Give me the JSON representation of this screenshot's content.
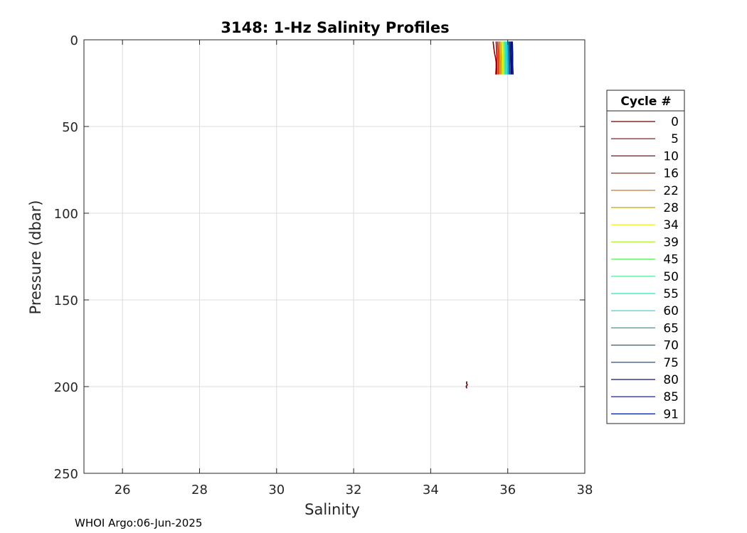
{
  "chart_data": {
    "type": "line",
    "title": "3148: 1-Hz Salinity Profiles",
    "xlabel": "Salinity",
    "ylabel": "Pressure (dbar)",
    "xlim": [
      25,
      38
    ],
    "ylim": [
      0,
      250
    ],
    "y_reversed": true,
    "x_ticks": [
      "26",
      "28",
      "30",
      "32",
      "34",
      "36",
      "38"
    ],
    "y_ticks": [
      "0",
      "50",
      "100",
      "150",
      "200",
      "250"
    ],
    "grid": true,
    "legend": {
      "title": "Cycle #",
      "placement": "right-outside",
      "entries": [
        "0",
        "5",
        "10",
        "16",
        "22",
        "28",
        "34",
        "39",
        "45",
        "50",
        "55",
        "60",
        "65",
        "70",
        "75",
        "80",
        "85",
        "91"
      ],
      "colors": [
        "#6b0000",
        "#8b0000",
        "#b00000",
        "#c82000",
        "#d86400",
        "#c8a800",
        "#f0f000",
        "#b4f040",
        "#64f064",
        "#40e890",
        "#30e0c0",
        "#20d0e8",
        "#10a8c8",
        "#0a6e8c",
        "#0a3e7c",
        "#101070",
        "#0c0c8c",
        "#0018a0"
      ]
    },
    "series": [
      {
        "cycle": "0",
        "points": [
          [
            34.94,
            197
          ],
          [
            34.93,
            198
          ],
          [
            34.95,
            199
          ],
          [
            34.92,
            200
          ],
          [
            34.94,
            201
          ]
        ]
      },
      {
        "cycle": "5",
        "points": [
          [
            35.62,
            1
          ],
          [
            35.64,
            5
          ],
          [
            35.66,
            8
          ],
          [
            35.68,
            10
          ],
          [
            35.7,
            13
          ],
          [
            35.7,
            16
          ],
          [
            35.69,
            20
          ]
        ]
      },
      {
        "cycle": "10",
        "points": [
          [
            35.7,
            1
          ],
          [
            35.71,
            6
          ],
          [
            35.72,
            10
          ],
          [
            35.72,
            15
          ],
          [
            35.72,
            20
          ]
        ]
      },
      {
        "cycle": "16",
        "points": [
          [
            35.74,
            1
          ],
          [
            35.75,
            6
          ],
          [
            35.76,
            12
          ],
          [
            35.76,
            20
          ]
        ]
      },
      {
        "cycle": "22",
        "points": [
          [
            35.78,
            1
          ],
          [
            35.79,
            7
          ],
          [
            35.8,
            13
          ],
          [
            35.8,
            20
          ]
        ]
      },
      {
        "cycle": "28",
        "points": [
          [
            35.82,
            1
          ],
          [
            35.83,
            8
          ],
          [
            35.84,
            14
          ],
          [
            35.84,
            20
          ]
        ]
      },
      {
        "cycle": "34",
        "points": [
          [
            35.85,
            1
          ],
          [
            35.86,
            7
          ],
          [
            35.87,
            13
          ],
          [
            35.87,
            20
          ]
        ]
      },
      {
        "cycle": "39",
        "points": [
          [
            35.88,
            1
          ],
          [
            35.89,
            8
          ],
          [
            35.9,
            15
          ],
          [
            35.9,
            20
          ]
        ]
      },
      {
        "cycle": "45",
        "points": [
          [
            35.91,
            1
          ],
          [
            35.92,
            7
          ],
          [
            35.92,
            14
          ],
          [
            35.92,
            20
          ]
        ]
      },
      {
        "cycle": "50",
        "points": [
          [
            35.93,
            1
          ],
          [
            35.94,
            8
          ],
          [
            35.94,
            15
          ],
          [
            35.94,
            20
          ]
        ]
      },
      {
        "cycle": "55",
        "points": [
          [
            35.95,
            1
          ],
          [
            35.96,
            7
          ],
          [
            35.96,
            14
          ],
          [
            35.96,
            20
          ]
        ]
      },
      {
        "cycle": "60",
        "points": [
          [
            35.98,
            1
          ],
          [
            35.98,
            8
          ],
          [
            35.99,
            15
          ],
          [
            35.99,
            20
          ]
        ]
      },
      {
        "cycle": "65",
        "points": [
          [
            36.0,
            1
          ],
          [
            36.01,
            8
          ],
          [
            36.01,
            15
          ],
          [
            36.01,
            20
          ]
        ]
      },
      {
        "cycle": "70",
        "points": [
          [
            36.03,
            1
          ],
          [
            36.03,
            8
          ],
          [
            36.04,
            15
          ],
          [
            36.04,
            20
          ]
        ]
      },
      {
        "cycle": "75",
        "points": [
          [
            36.05,
            1
          ],
          [
            36.06,
            8
          ],
          [
            36.06,
            15
          ],
          [
            36.06,
            20
          ]
        ]
      },
      {
        "cycle": "80",
        "points": [
          [
            36.08,
            1
          ],
          [
            36.08,
            8
          ],
          [
            36.09,
            15
          ],
          [
            36.09,
            20
          ]
        ]
      },
      {
        "cycle": "85",
        "points": [
          [
            36.1,
            1
          ],
          [
            36.11,
            8
          ],
          [
            36.11,
            15
          ],
          [
            36.11,
            20
          ]
        ]
      },
      {
        "cycle": "91",
        "points": [
          [
            36.12,
            1
          ],
          [
            36.13,
            8
          ],
          [
            36.13,
            15
          ],
          [
            36.14,
            20
          ]
        ]
      }
    ]
  },
  "footer": "WHOI Argo:06-Jun-2025"
}
